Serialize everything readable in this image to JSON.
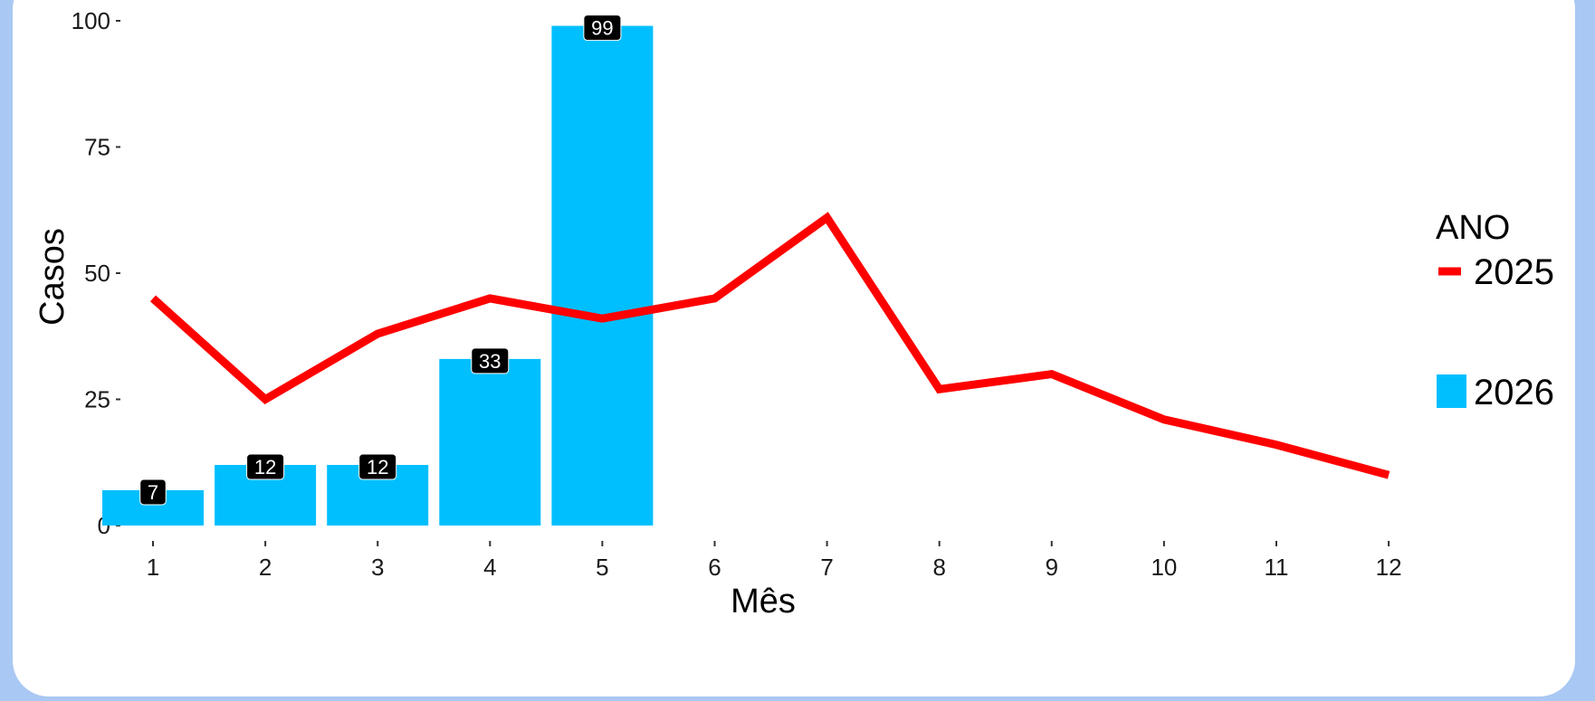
{
  "chart_data": {
    "type": "bar",
    "xlabel": "Mês",
    "ylabel": "Casos",
    "ylim": [
      0,
      100
    ],
    "yticks": [
      0,
      25,
      50,
      75,
      100
    ],
    "categories": [
      "1",
      "2",
      "3",
      "4",
      "5",
      "6",
      "7",
      "8",
      "9",
      "10",
      "11",
      "12"
    ],
    "legend": {
      "title": "ANO",
      "placement": "right"
    },
    "grid": false,
    "series": [
      {
        "name": "2025",
        "type": "line",
        "color": "#ff0000",
        "values": [
          45,
          25,
          38,
          45,
          41,
          45,
          61,
          27,
          30,
          21,
          16,
          10
        ]
      },
      {
        "name": "2026",
        "type": "bar",
        "color": "#00bfff",
        "values": [
          7,
          12,
          12,
          33,
          99,
          null,
          null,
          null,
          null,
          null,
          null,
          null
        ],
        "data_labels": [
          "7",
          "12",
          "12",
          "33",
          "99"
        ]
      }
    ]
  }
}
